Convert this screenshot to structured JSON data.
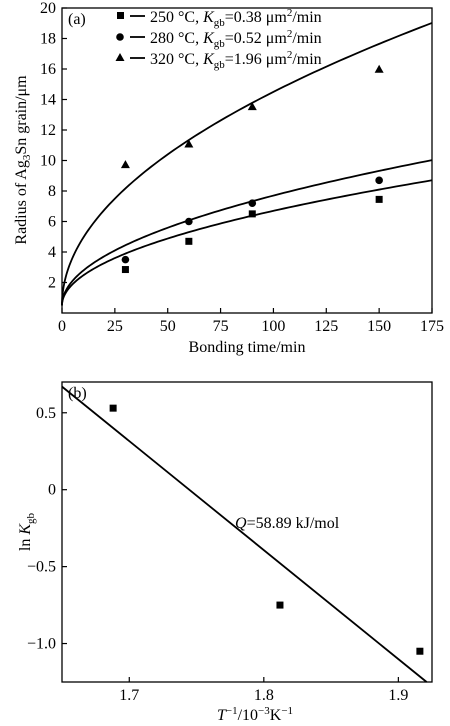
{
  "chart_data": [
    {
      "panel": "(a)",
      "type": "scatter",
      "xlabel": "Bonding time/min",
      "ylabel": "Radius of Ag3Sn grain/μm",
      "xlim": [
        0,
        175
      ],
      "ylim": [
        0,
        20
      ],
      "xticks": [
        0,
        25,
        50,
        75,
        100,
        125,
        150,
        175
      ],
      "yticks": [
        2,
        4,
        6,
        8,
        10,
        12,
        14,
        16,
        18,
        20
      ],
      "legend_placement": "top-left",
      "series": [
        {
          "name": "250 °C",
          "legend_text": "250 °C, Kgb=0.38 μm²/min",
          "k_value": "0.38",
          "marker": "square",
          "x": [
            30,
            60,
            90,
            150
          ],
          "y": [
            2.85,
            4.7,
            6.5,
            7.45
          ],
          "fit_coeff": 0.62
        },
        {
          "name": "280 °C",
          "legend_text": "280 °C, Kgb=0.52 μm²/min",
          "k_value": "0.52",
          "marker": "circle",
          "x": [
            30,
            60,
            90,
            150
          ],
          "y": [
            3.5,
            6.0,
            7.2,
            8.7
          ],
          "fit_coeff": 0.72
        },
        {
          "name": "320 °C",
          "legend_text": "320 °C, Kgb=1.96 μm²/min",
          "k_value": "1.96",
          "marker": "triangle",
          "x": [
            30,
            60,
            90,
            150
          ],
          "y": [
            9.7,
            11.05,
            13.5,
            15.95
          ],
          "fit_coeff": 1.4
        }
      ]
    },
    {
      "panel": "(b)",
      "type": "scatter",
      "xlabel": "T⁻¹/10⁻³K⁻¹",
      "ylabel": "ln Kgb",
      "xlim": [
        1.65,
        1.925
      ],
      "ylim": [
        -1.25,
        0.7
      ],
      "xticks": [
        1.7,
        1.8,
        1.9
      ],
      "yticks": [
        0.5,
        0,
        -0.5,
        -1.0
      ],
      "annotation": "Q=58.89 kJ/mol",
      "series": [
        {
          "marker": "square",
          "x": [
            1.688,
            1.812,
            1.916
          ],
          "y": [
            0.53,
            -0.75,
            -1.05
          ]
        }
      ],
      "fit_line": {
        "x": [
          1.65,
          1.921
        ],
        "y": [
          0.67,
          -1.25
        ]
      }
    }
  ]
}
